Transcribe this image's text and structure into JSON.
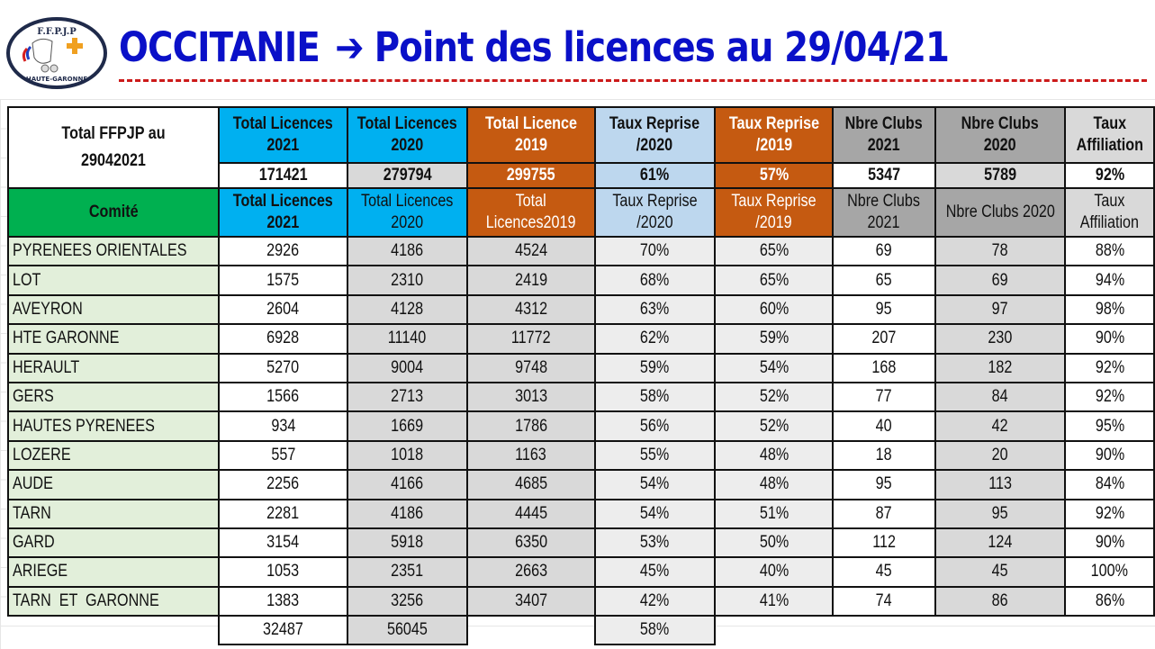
{
  "header": {
    "logo": {
      "top_text": "F.F.P.J.P",
      "bottom_text": "HAUTE-GARONNE"
    },
    "title_left": "OCCITANIE",
    "title_arrow": "➔",
    "title_right": "Point des licences au 29/04/21"
  },
  "colors": {
    "title": "#0a10c8",
    "underline": "#cc1a1a",
    "cyan_header": "#00b0f0",
    "orange_header": "#c55a11",
    "light_blue_header": "#bdd7ee",
    "dark_gray_header": "#a6a6a6",
    "light_gray_header": "#d9d9d9",
    "green_header": "#00b050",
    "comite_cell": "#e2efda"
  },
  "summary": {
    "label": "Total FFPJP au 29042021",
    "headers": [
      {
        "line1": "Total Licences",
        "line2": "2021"
      },
      {
        "line1": "Total Licences",
        "line2": "2020"
      },
      {
        "line1": "Total Licence",
        "line2": "2019"
      },
      {
        "line1": "Taux Reprise",
        "line2": "/2020"
      },
      {
        "line1": "Taux Reprise",
        "line2": "/2019"
      },
      {
        "line1": "Nbre Clubs",
        "line2": "2021"
      },
      {
        "line1": "Nbre Clubs",
        "line2": "2020"
      },
      {
        "line1": "Taux",
        "line2": "Affiliation"
      }
    ],
    "values": [
      "171421",
      "279794",
      "299755",
      "61%",
      "57%",
      "5347",
      "5789",
      "92%"
    ]
  },
  "table": {
    "columns": [
      {
        "line1": "Comité",
        "line2": ""
      },
      {
        "line1": "Total Licences",
        "line2": "2021"
      },
      {
        "line1": "Total Licences",
        "line2": "2020"
      },
      {
        "line1": "Total",
        "line2": "Licences2019"
      },
      {
        "line1": "Taux Reprise",
        "line2": "/2020"
      },
      {
        "line1": "Taux Reprise",
        "line2": "/2019"
      },
      {
        "line1": "Nbre Clubs",
        "line2": "2021"
      },
      {
        "line1": "Nbre Clubs 2020",
        "line2": ""
      },
      {
        "line1": "Taux",
        "line2": "Affiliation"
      }
    ],
    "rows": [
      [
        "PYRENEES ORIENTALES",
        "2926",
        "4186",
        "4524",
        "70%",
        "65%",
        "69",
        "78",
        "88%"
      ],
      [
        "LOT",
        "1575",
        "2310",
        "2419",
        "68%",
        "65%",
        "65",
        "69",
        "94%"
      ],
      [
        "AVEYRON",
        "2604",
        "4128",
        "4312",
        "63%",
        "60%",
        "95",
        "97",
        "98%"
      ],
      [
        "HTE GARONNE",
        "6928",
        "11140",
        "11772",
        "62%",
        "59%",
        "207",
        "230",
        "90%"
      ],
      [
        "HERAULT",
        "5270",
        "9004",
        "9748",
        "59%",
        "54%",
        "168",
        "182",
        "92%"
      ],
      [
        "GERS",
        "1566",
        "2713",
        "3013",
        "58%",
        "52%",
        "77",
        "84",
        "92%"
      ],
      [
        "HAUTES PYRENEES",
        "934",
        "1669",
        "1786",
        "56%",
        "52%",
        "40",
        "42",
        "95%"
      ],
      [
        "LOZERE",
        "557",
        "1018",
        "1163",
        "55%",
        "48%",
        "18",
        "20",
        "90%"
      ],
      [
        "AUDE",
        "2256",
        "4166",
        "4685",
        "54%",
        "48%",
        "95",
        "113",
        "84%"
      ],
      [
        "TARN",
        "2281",
        "4186",
        "4445",
        "54%",
        "51%",
        "87",
        "95",
        "92%"
      ],
      [
        "GARD",
        "3154",
        "5918",
        "6350",
        "53%",
        "50%",
        "112",
        "124",
        "90%"
      ],
      [
        "ARIEGE",
        "1053",
        "2351",
        "2663",
        "45%",
        "40%",
        "45",
        "45",
        "100%"
      ],
      [
        "TARN  ET  GARONNE",
        "1383",
        "3256",
        "3407",
        "42%",
        "41%",
        "74",
        "86",
        "86%"
      ]
    ],
    "totals": {
      "licences_2021": "32487",
      "licences_2020": "56045",
      "taux_reprise_2020": "58%"
    }
  }
}
